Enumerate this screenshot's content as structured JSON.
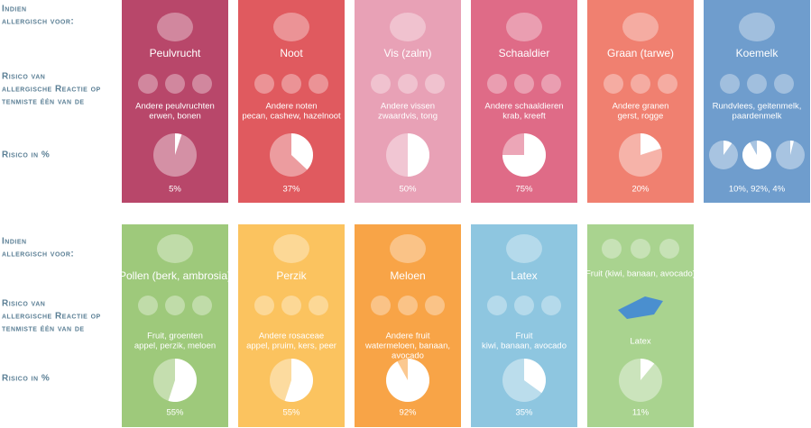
{
  "side_labels": {
    "allergic": [
      "Indien",
      "allergisch voor:"
    ],
    "risk_of": [
      "Risico van",
      "allergische Reactie op",
      "tenmiste één van de"
    ],
    "risk_pct": "Risico in %"
  },
  "rows": [
    {
      "cards": [
        {
          "title": "Peulvrucht",
          "color": "#b8476a",
          "lines": [
            "Andere peulvruchten",
            "erwen, bonen"
          ],
          "risks": [
            5
          ],
          "risk_label": "5%"
        },
        {
          "title": "Noot",
          "color": "#e05a5f",
          "lines": [
            "Andere noten",
            "pecan, cashew, hazelnoot"
          ],
          "risks": [
            37
          ],
          "risk_label": "37%"
        },
        {
          "title": "Vis (zalm)",
          "color": "#e8a1b6",
          "lines": [
            "Andere vissen",
            "zwaardvis, tong"
          ],
          "risks": [
            50
          ],
          "risk_label": "50%"
        },
        {
          "title": "Schaaldier",
          "color": "#df6b87",
          "lines": [
            "Andere schaaldieren",
            "krab, kreeft"
          ],
          "risks": [
            75
          ],
          "risk_label": "75%"
        },
        {
          "title": "Graan (tarwe)",
          "color": "#f08070",
          "lines": [
            "Andere granen",
            "gerst, rogge"
          ],
          "risks": [
            20
          ],
          "risk_label": "20%"
        },
        {
          "title": "Koemelk",
          "color": "#6f9dcd",
          "lines": [
            "Rundvlees, geitenmelk,",
            "paardenmelk"
          ],
          "risks": [
            10,
            92,
            4
          ],
          "risk_label": "10%, 92%, 4%"
        }
      ]
    },
    {
      "cards": [
        {
          "title": "Pollen (berk, ambrosia)",
          "color": "#9ec97b",
          "lines": [
            "Fruit, groenten",
            "appel, perzik, meloen"
          ],
          "risks": [
            55
          ],
          "risk_label": "55%"
        },
        {
          "title": "Perzik",
          "color": "#fbc35f",
          "lines": [
            "Andere rosaceae",
            "appel, pruim, kers, peer"
          ],
          "risks": [
            55
          ],
          "risk_label": "55%"
        },
        {
          "title": "Meloen",
          "color": "#f8a447",
          "lines": [
            "Andere fruit",
            "watermeloen, banaan,",
            "avocado"
          ],
          "risks": [
            92
          ],
          "risk_label": "92%"
        },
        {
          "title": "Latex",
          "color": "#8ec6e0",
          "lines": [
            "Fruit",
            "kiwi, banaan, avocado"
          ],
          "risks": [
            35
          ],
          "risk_label": "35%"
        },
        {
          "top_text": "Fruit (kiwi, banaan, avocado)",
          "color": "#a9d38f",
          "lines": [
            "Latex"
          ],
          "risks": [
            11
          ],
          "risk_label": "11%"
        }
      ]
    }
  ]
}
